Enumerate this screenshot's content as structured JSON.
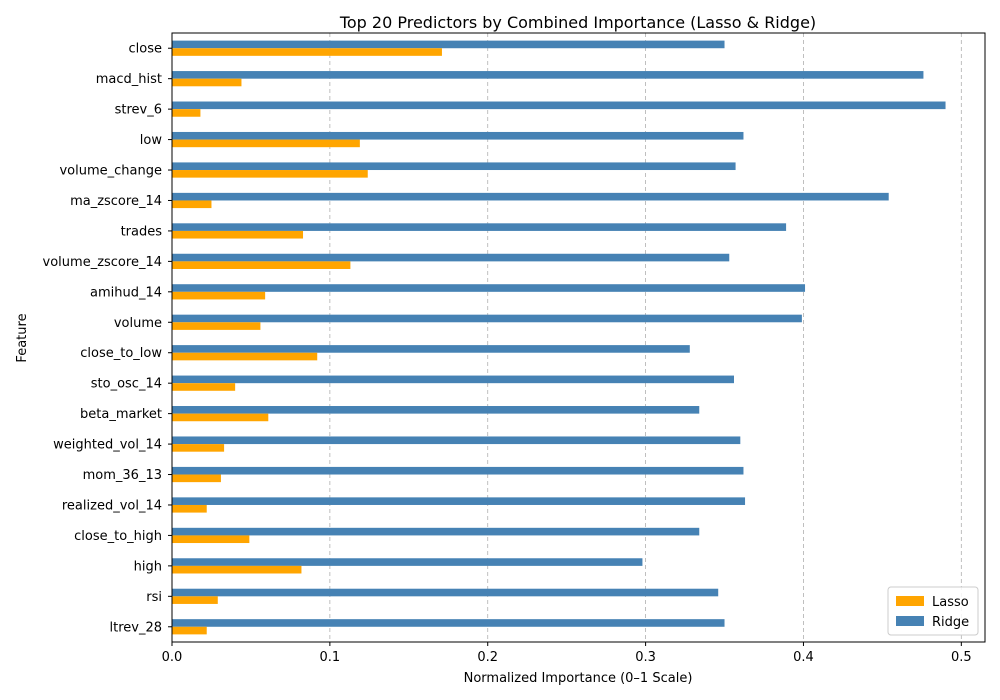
{
  "chart_data": {
    "type": "bar",
    "orientation": "horizontal",
    "title": "Top 20 Predictors by Combined Importance (Lasso & Ridge)",
    "xlabel": "Normalized Importance (0–1 Scale)",
    "ylabel": "Feature",
    "xlim": [
      0,
      0.515
    ],
    "xticks": [
      0.0,
      0.1,
      0.2,
      0.3,
      0.4,
      0.5
    ],
    "xtick_labels": [
      "0.0",
      "0.1",
      "0.2",
      "0.3",
      "0.4",
      "0.5"
    ],
    "grid": "x-dashed",
    "legend_position": "bottom-right",
    "categories": [
      "close",
      "macd_hist",
      "strev_6",
      "low",
      "volume_change",
      "ma_zscore_14",
      "trades",
      "volume_zscore_14",
      "amihud_14",
      "volume",
      "close_to_low",
      "sto_osc_14",
      "beta_market",
      "weighted_vol_14",
      "mom_36_13",
      "realized_vol_14",
      "close_to_high",
      "high",
      "rsi",
      "ltrev_28"
    ],
    "series": [
      {
        "name": "Lasso",
        "color": "#FFA500",
        "values": [
          0.171,
          0.044,
          0.018,
          0.119,
          0.124,
          0.025,
          0.083,
          0.113,
          0.059,
          0.056,
          0.092,
          0.04,
          0.061,
          0.033,
          0.031,
          0.022,
          0.049,
          0.082,
          0.029,
          0.022
        ]
      },
      {
        "name": "Ridge",
        "color": "#4682B4",
        "values": [
          0.35,
          0.476,
          0.49,
          0.362,
          0.357,
          0.454,
          0.389,
          0.353,
          0.401,
          0.399,
          0.328,
          0.356,
          0.334,
          0.36,
          0.362,
          0.363,
          0.334,
          0.298,
          0.346,
          0.35
        ]
      }
    ]
  }
}
